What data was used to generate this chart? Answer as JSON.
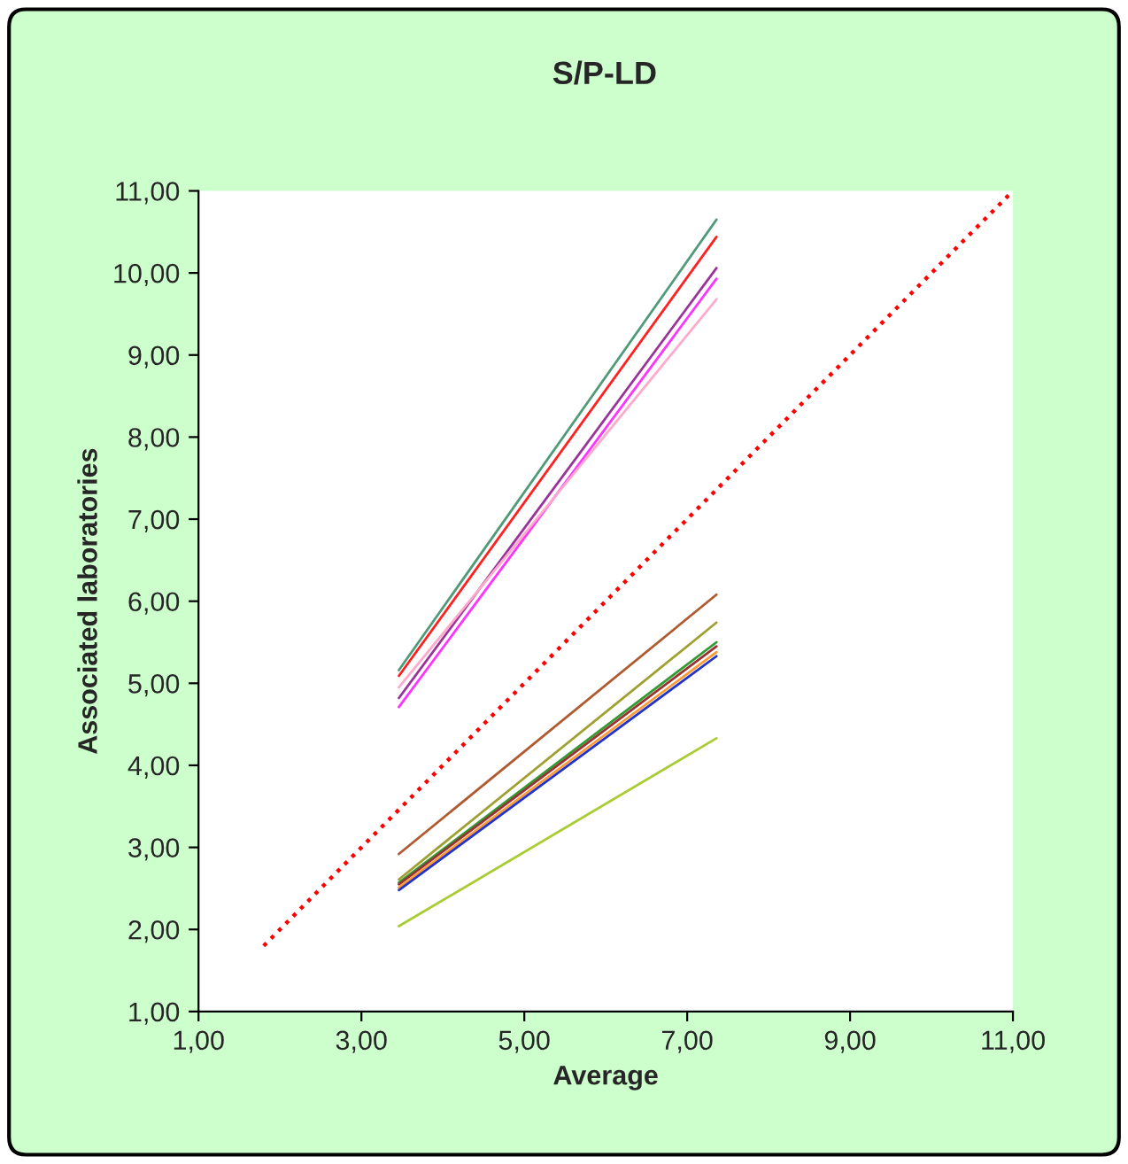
{
  "chart_data": {
    "type": "line",
    "title": "S/P-LD",
    "xlabel": "Average",
    "ylabel": "Associated laboratories",
    "xlim": [
      1,
      11
    ],
    "ylim": [
      1,
      11
    ],
    "xticks": [
      {
        "value": 1,
        "label": "1,00"
      },
      {
        "value": 3,
        "label": "3,00"
      },
      {
        "value": 5,
        "label": "5,00"
      },
      {
        "value": 7,
        "label": "7,00"
      },
      {
        "value": 9,
        "label": "9,00"
      },
      {
        "value": 11,
        "label": "11,00"
      }
    ],
    "yticks": [
      {
        "value": 1,
        "label": "1,00"
      },
      {
        "value": 2,
        "label": "2,00"
      },
      {
        "value": 3,
        "label": "3,00"
      },
      {
        "value": 4,
        "label": "4,00"
      },
      {
        "value": 5,
        "label": "5,00"
      },
      {
        "value": 6,
        "label": "6,00"
      },
      {
        "value": 7,
        "label": "7,00"
      },
      {
        "value": 8,
        "label": "8,00"
      },
      {
        "value": 9,
        "label": "9,00"
      },
      {
        "value": 10,
        "label": "10,00"
      },
      {
        "value": 11,
        "label": "11,00"
      }
    ],
    "grid": false,
    "marker": "none",
    "series": [
      {
        "color": "#4f9a78",
        "x": [
          3.46,
          7.36
        ],
        "values": [
          5.16,
          10.65
        ]
      },
      {
        "color": "#ff2020",
        "x": [
          3.46,
          7.36
        ],
        "values": [
          5.09,
          10.44
        ]
      },
      {
        "color": "#993399",
        "x": [
          3.46,
          7.36
        ],
        "values": [
          4.82,
          10.06
        ]
      },
      {
        "color": "#ff33ff",
        "x": [
          3.46,
          7.36
        ],
        "values": [
          4.71,
          9.93
        ]
      },
      {
        "color": "#ffaacc",
        "x": [
          3.46,
          7.36
        ],
        "values": [
          4.95,
          9.68
        ]
      },
      {
        "color": "#b05a30",
        "x": [
          3.46,
          7.36
        ],
        "values": [
          2.92,
          6.08
        ]
      },
      {
        "color": "#a0a030",
        "x": [
          3.46,
          7.36
        ],
        "values": [
          2.61,
          5.74
        ]
      },
      {
        "color": "#339933",
        "x": [
          3.46,
          7.36
        ],
        "values": [
          2.57,
          5.5
        ]
      },
      {
        "color": "#993333",
        "x": [
          3.46,
          7.36
        ],
        "values": [
          2.55,
          5.45
        ]
      },
      {
        "color": "#ff9933",
        "x": [
          3.46,
          7.36
        ],
        "values": [
          2.51,
          5.38
        ]
      },
      {
        "color": "#2233cc",
        "x": [
          3.46,
          7.36
        ],
        "values": [
          2.48,
          5.33
        ]
      },
      {
        "color": "#aacc33",
        "x": [
          3.46,
          7.36
        ],
        "values": [
          2.04,
          4.33
        ]
      },
      {
        "color": "#ff0000",
        "x": [
          1.8,
          11
        ],
        "values": [
          1.8,
          11
        ],
        "line_style": "dotted"
      }
    ]
  }
}
